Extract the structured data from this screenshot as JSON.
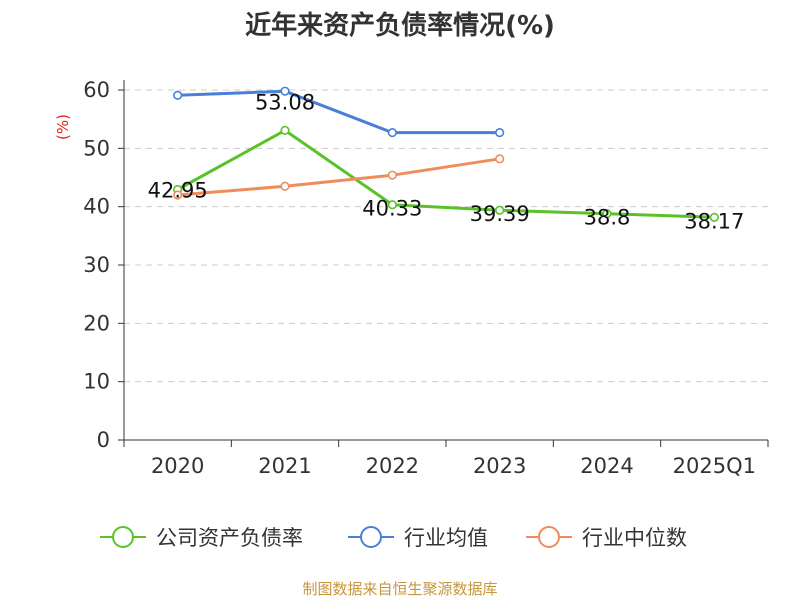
{
  "chart_data": {
    "type": "line",
    "title": "近年来资产负债率情况(%)",
    "ylabel": "(%)",
    "xlabel": "",
    "categories": [
      "2020",
      "2021",
      "2022",
      "2023",
      "2024",
      "2025Q1"
    ],
    "ylim": [
      0,
      60
    ],
    "yticks": [
      "0",
      "10",
      "20",
      "30",
      "40",
      "50",
      "60"
    ],
    "grid": true,
    "legend_position": "bottom",
    "series": [
      {
        "name": "公司资产负债率",
        "color": "#5ac229",
        "values": [
          42.95,
          53.08,
          40.33,
          39.39,
          38.8,
          38.17
        ],
        "labels": [
          "42.95",
          "53.08",
          "40.33",
          "39.39",
          "38.8",
          "38.17"
        ]
      },
      {
        "name": "行业均值",
        "color": "#4a7fd9",
        "values": [
          59.1,
          59.8,
          52.7,
          52.7,
          null,
          null
        ]
      },
      {
        "name": "行业中位数",
        "color": "#f08c5a",
        "values": [
          42.0,
          43.5,
          45.4,
          48.2,
          null,
          null
        ]
      }
    ],
    "source": "制图数据来自恒生聚源数据库"
  }
}
